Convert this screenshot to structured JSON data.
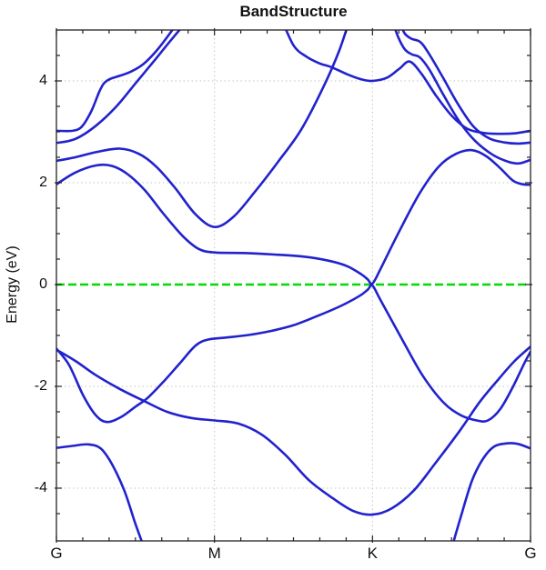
{
  "chart_data": {
    "type": "line",
    "title": "BandStructure",
    "ylabel": "Energy (eV)",
    "xlabel": "",
    "x_tick_labels": [
      "G",
      "M",
      "K",
      "G"
    ],
    "x_tick_positions": [
      0,
      1,
      2,
      3
    ],
    "y_tick_labels": [
      "4",
      "2",
      "0",
      "-2",
      "-4"
    ],
    "y_major_ticks": [
      4,
      2,
      0,
      -2,
      -4
    ],
    "y_minor_step": 0.5,
    "x_minor_divisions_per_segment": 6,
    "xlim": [
      0,
      3
    ],
    "ylim": [
      -5.036,
      5.0
    ],
    "grid": {
      "x": [
        1,
        2
      ],
      "y": [
        4,
        2,
        -2,
        -4
      ],
      "style": "dotted",
      "color": "#C3C3C3"
    },
    "fermi_line": {
      "energy": 0,
      "color": "#00DC00",
      "style": "dashed"
    },
    "band_color": "#2222CE",
    "frame_color": "#222222",
    "series": [
      {
        "name": "band-1",
        "points": [
          [
            0,
            3.02
          ],
          [
            0.1,
            3.02
          ],
          [
            0.16,
            3.1
          ],
          [
            0.22,
            3.4
          ],
          [
            0.27,
            3.78
          ],
          [
            0.3,
            3.95
          ],
          [
            0.34,
            4.04
          ],
          [
            0.4,
            4.1
          ],
          [
            0.47,
            4.18
          ],
          [
            0.55,
            4.33
          ],
          [
            0.63,
            4.58
          ],
          [
            0.71,
            4.9
          ],
          [
            0.79,
            5.25
          ]
        ]
      },
      {
        "name": "band-2",
        "points": [
          [
            0,
            2.78
          ],
          [
            0.12,
            2.86
          ],
          [
            0.25,
            3.12
          ],
          [
            0.38,
            3.5
          ],
          [
            0.5,
            3.95
          ],
          [
            0.62,
            4.4
          ],
          [
            0.73,
            4.82
          ],
          [
            0.86,
            5.3
          ]
        ]
      },
      {
        "name": "band-3",
        "points": [
          [
            0,
            2.43
          ],
          [
            0.12,
            2.5
          ],
          [
            0.25,
            2.6
          ],
          [
            0.4,
            2.67
          ],
          [
            0.52,
            2.57
          ],
          [
            0.63,
            2.32
          ],
          [
            0.75,
            1.9
          ],
          [
            0.88,
            1.38
          ],
          [
            1.0,
            1.13
          ],
          [
            1.12,
            1.33
          ],
          [
            1.25,
            1.8
          ],
          [
            1.4,
            2.4
          ],
          [
            1.55,
            3.05
          ],
          [
            1.7,
            3.95
          ],
          [
            1.79,
            4.6
          ],
          [
            1.86,
            5.25
          ]
        ]
      },
      {
        "name": "band-4",
        "points": [
          [
            0,
            1.97
          ],
          [
            0.12,
            2.2
          ],
          [
            0.25,
            2.34
          ],
          [
            0.35,
            2.33
          ],
          [
            0.45,
            2.17
          ],
          [
            0.56,
            1.85
          ],
          [
            0.68,
            1.38
          ],
          [
            0.8,
            0.95
          ],
          [
            0.9,
            0.7
          ],
          [
            1.0,
            0.63
          ],
          [
            1.18,
            0.62
          ],
          [
            1.38,
            0.59
          ],
          [
            1.56,
            0.55
          ],
          [
            1.72,
            0.47
          ],
          [
            1.84,
            0.36
          ],
          [
            1.93,
            0.2
          ],
          [
            1.97,
            0.1
          ],
          [
            2.0,
            0.02
          ],
          [
            2.05,
            0.3
          ],
          [
            2.17,
            1.05
          ],
          [
            2.3,
            1.8
          ],
          [
            2.42,
            2.32
          ],
          [
            2.53,
            2.57
          ],
          [
            2.63,
            2.64
          ],
          [
            2.72,
            2.52
          ],
          [
            2.81,
            2.28
          ],
          [
            2.89,
            2.04
          ],
          [
            2.95,
            1.97
          ],
          [
            3.0,
            1.96
          ]
        ]
      },
      {
        "name": "band-5",
        "points": [
          [
            1.42,
            5.25
          ],
          [
            1.5,
            4.7
          ],
          [
            1.58,
            4.48
          ],
          [
            1.66,
            4.35
          ],
          [
            1.74,
            4.27
          ],
          [
            1.84,
            4.13
          ],
          [
            1.93,
            4.03
          ],
          [
            2.0,
            4.0
          ],
          [
            2.09,
            4.06
          ],
          [
            2.17,
            4.24
          ],
          [
            2.235,
            4.38
          ],
          [
            2.31,
            4.14
          ],
          [
            2.4,
            3.72
          ],
          [
            2.5,
            3.32
          ],
          [
            2.6,
            3.06
          ],
          [
            2.7,
            2.98
          ],
          [
            2.8,
            2.96
          ],
          [
            2.9,
            2.97
          ],
          [
            3.0,
            3.02
          ]
        ]
      },
      {
        "name": "band-6",
        "points": [
          [
            2.165,
            5.25
          ],
          [
            2.2,
            4.95
          ],
          [
            2.245,
            4.83
          ],
          [
            2.3,
            4.77
          ],
          [
            2.35,
            4.57
          ],
          [
            2.44,
            4.1
          ],
          [
            2.54,
            3.55
          ],
          [
            2.64,
            3.1
          ],
          [
            2.74,
            2.87
          ],
          [
            2.84,
            2.79
          ],
          [
            2.92,
            2.77
          ],
          [
            3.0,
            2.79
          ]
        ]
      },
      {
        "name": "band-7",
        "points": [
          [
            2.12,
            5.25
          ],
          [
            2.16,
            4.88
          ],
          [
            2.205,
            4.62
          ],
          [
            2.25,
            4.52
          ],
          [
            2.3,
            4.46
          ],
          [
            2.36,
            4.22
          ],
          [
            2.45,
            3.72
          ],
          [
            2.55,
            3.2
          ],
          [
            2.65,
            2.82
          ],
          [
            2.76,
            2.55
          ],
          [
            2.86,
            2.41
          ],
          [
            2.93,
            2.38
          ],
          [
            3.0,
            2.45
          ]
        ]
      },
      {
        "name": "band-8",
        "points": [
          [
            0,
            -1.26
          ],
          [
            0.08,
            -1.58
          ],
          [
            0.17,
            -2.18
          ],
          [
            0.25,
            -2.57
          ],
          [
            0.32,
            -2.7
          ],
          [
            0.41,
            -2.6
          ],
          [
            0.5,
            -2.4
          ],
          [
            0.58,
            -2.22
          ],
          [
            0.68,
            -1.9
          ],
          [
            0.78,
            -1.55
          ],
          [
            0.88,
            -1.2
          ],
          [
            0.96,
            -1.08
          ],
          [
            1.08,
            -1.04
          ],
          [
            1.22,
            -0.99
          ],
          [
            1.36,
            -0.91
          ],
          [
            1.5,
            -0.8
          ],
          [
            1.65,
            -0.62
          ],
          [
            1.8,
            -0.42
          ],
          [
            1.92,
            -0.22
          ],
          [
            1.97,
            -0.1
          ],
          [
            2.0,
            -0.02
          ],
          [
            2.05,
            -0.3
          ],
          [
            2.2,
            -1.15
          ],
          [
            2.32,
            -1.8
          ],
          [
            2.45,
            -2.32
          ],
          [
            2.56,
            -2.57
          ],
          [
            2.66,
            -2.67
          ],
          [
            2.73,
            -2.67
          ],
          [
            2.81,
            -2.44
          ],
          [
            2.89,
            -2.0
          ],
          [
            2.96,
            -1.55
          ],
          [
            3.0,
            -1.32
          ]
        ]
      },
      {
        "name": "band-9",
        "points": [
          [
            0,
            -1.28
          ],
          [
            0.12,
            -1.5
          ],
          [
            0.25,
            -1.78
          ],
          [
            0.4,
            -2.05
          ],
          [
            0.55,
            -2.28
          ],
          [
            0.7,
            -2.5
          ],
          [
            0.85,
            -2.62
          ],
          [
            1.0,
            -2.67
          ],
          [
            1.15,
            -2.73
          ],
          [
            1.3,
            -2.95
          ],
          [
            1.45,
            -3.35
          ],
          [
            1.6,
            -3.85
          ],
          [
            1.75,
            -4.2
          ],
          [
            1.88,
            -4.45
          ],
          [
            2.0,
            -4.52
          ],
          [
            2.12,
            -4.4
          ],
          [
            2.26,
            -4.05
          ],
          [
            2.4,
            -3.5
          ],
          [
            2.55,
            -2.88
          ],
          [
            2.68,
            -2.3
          ],
          [
            2.8,
            -1.85
          ],
          [
            2.9,
            -1.5
          ],
          [
            3.0,
            -1.22
          ]
        ]
      },
      {
        "name": "band-10",
        "points": [
          [
            0,
            -3.21
          ],
          [
            0.1,
            -3.17
          ],
          [
            0.2,
            -3.14
          ],
          [
            0.28,
            -3.22
          ],
          [
            0.35,
            -3.52
          ],
          [
            0.43,
            -4.05
          ],
          [
            0.5,
            -4.7
          ],
          [
            0.57,
            -5.3
          ]
        ]
      },
      {
        "name": "band-11",
        "points": [
          [
            2.49,
            -5.3
          ],
          [
            2.56,
            -4.55
          ],
          [
            2.63,
            -3.85
          ],
          [
            2.7,
            -3.42
          ],
          [
            2.77,
            -3.18
          ],
          [
            2.85,
            -3.12
          ],
          [
            2.92,
            -3.13
          ],
          [
            3.0,
            -3.22
          ]
        ]
      }
    ]
  }
}
